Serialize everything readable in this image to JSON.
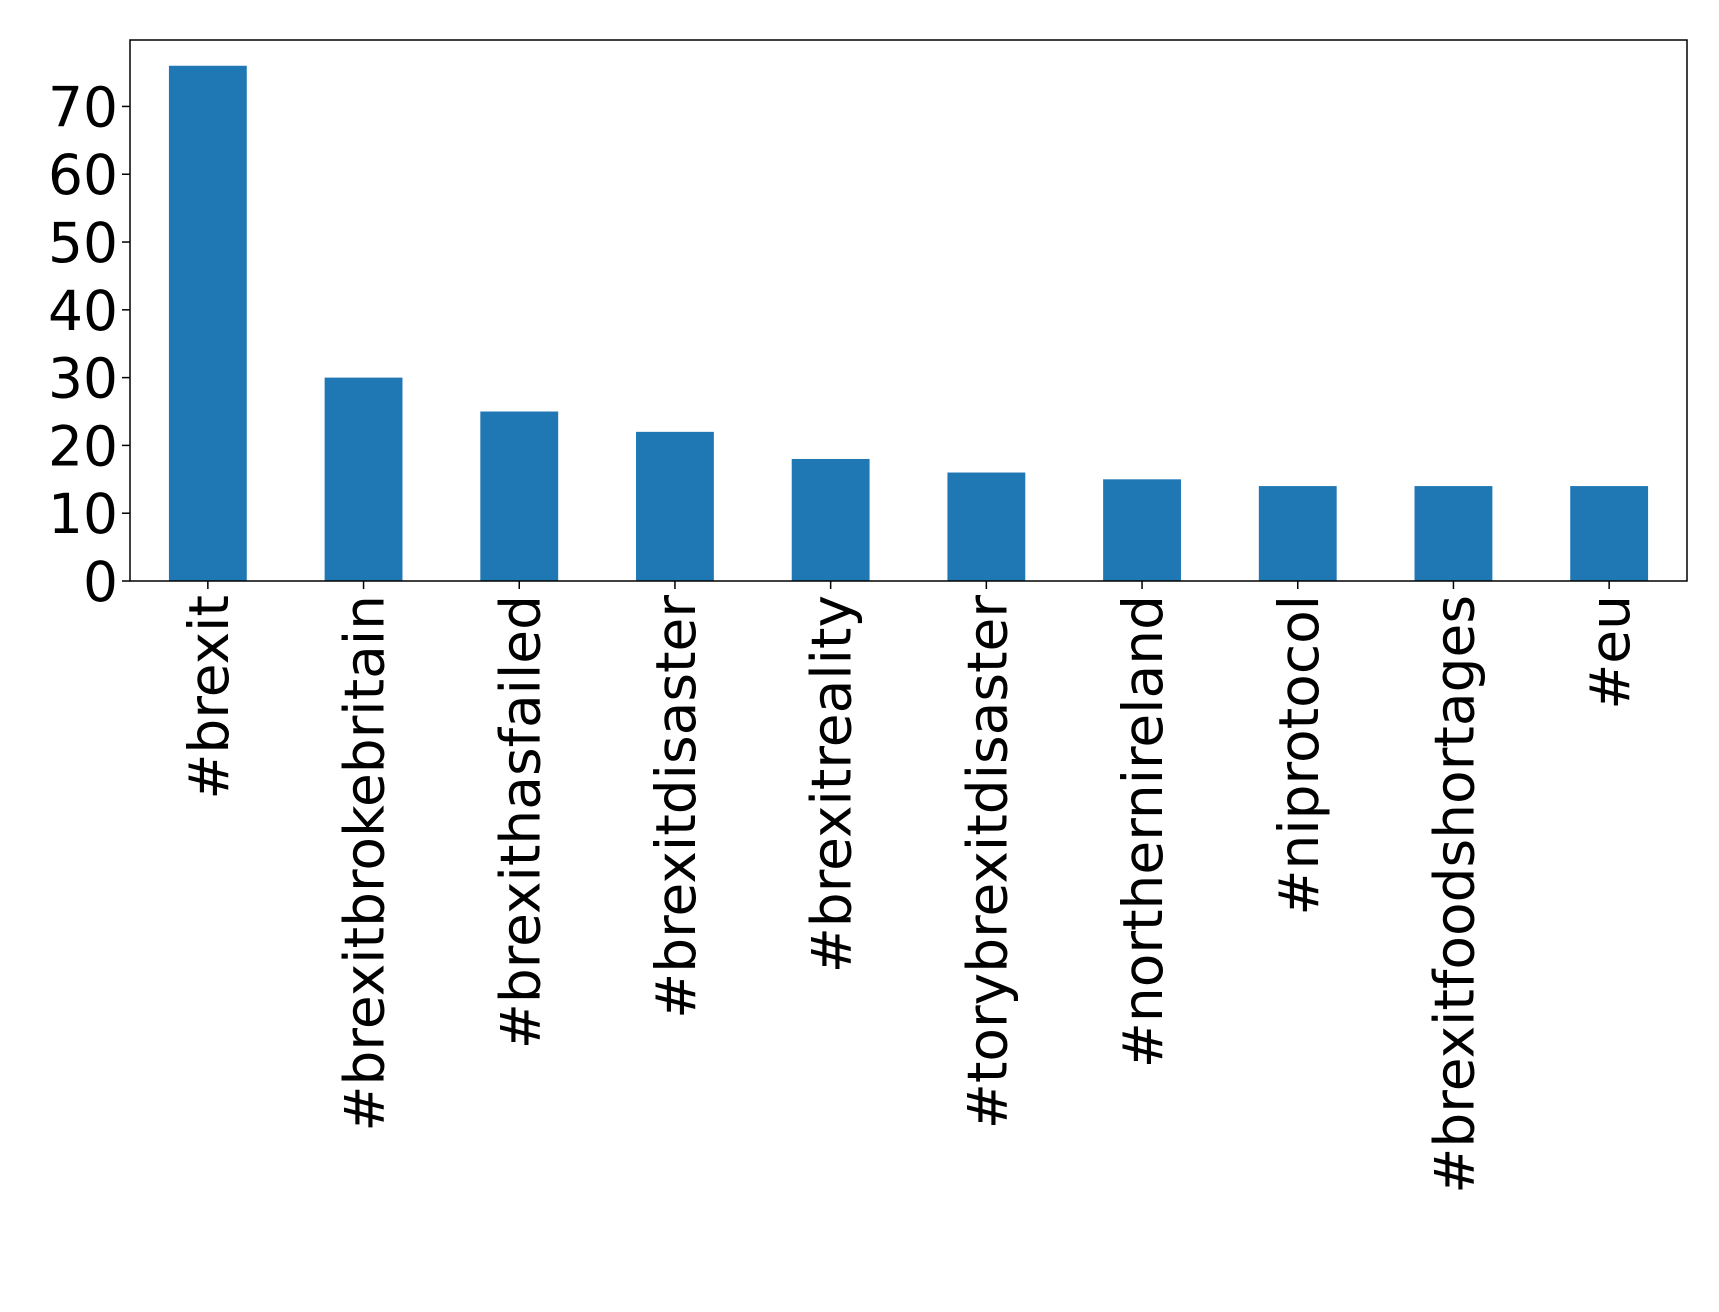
{
  "chart_data": {
    "type": "bar",
    "categories": [
      "#brexit",
      "#brexitbrokebritain",
      "#brexithasfailed",
      "#brexitdisaster",
      "#brexitreality",
      "#torybrexitdisaster",
      "#northernireland",
      "#niprotocol",
      "#brexitfoodshortages",
      "#eu"
    ],
    "values": [
      76,
      30,
      25,
      22,
      18,
      16,
      15,
      14,
      14,
      14
    ],
    "color": "#1f77b4",
    "ylim": [
      0,
      79.8
    ],
    "yticks": [
      0,
      10,
      20,
      30,
      40,
      50,
      60,
      70
    ],
    "grid": false
  }
}
